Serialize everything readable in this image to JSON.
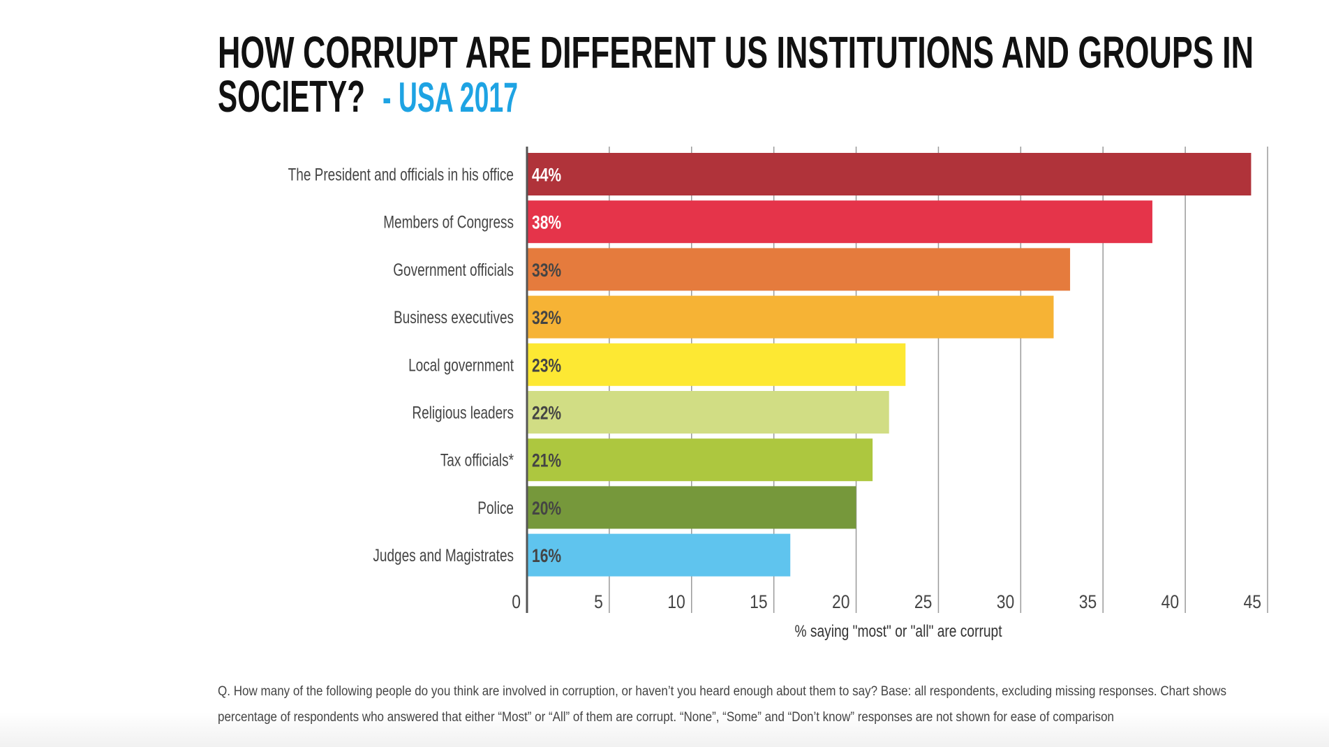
{
  "chart_data": {
    "type": "bar",
    "orientation": "horizontal",
    "title": "HOW CORRUPT ARE DIFFERENT US INSTITUTIONS AND GROUPS IN SOCIETY?",
    "title_line1": "HOW CORRUPT ARE DIFFERENT US INSTITUTIONS AND GROUPS IN",
    "title_line2": "SOCIETY?",
    "subtitle": "- USA 2017",
    "categories": [
      "The President and officials in his office",
      "Members of Congress",
      "Government officials",
      "Business executives",
      "Local government",
      "Religious leaders",
      "Tax officials*",
      "Police",
      "Judges and Magistrates"
    ],
    "values": [
      44,
      38,
      33,
      32,
      23,
      22,
      21,
      20,
      16
    ],
    "data_labels": [
      "44%",
      "38%",
      "33%",
      "32%",
      "23%",
      "22%",
      "21%",
      "20%",
      "16%"
    ],
    "bar_colors": [
      "#b0333a",
      "#e5344a",
      "#e57b3d",
      "#f6b335",
      "#fde833",
      "#d1dd84",
      "#adc73f",
      "#76983b",
      "#5fc4ee"
    ],
    "label_colors": [
      "#ffffff",
      "#ffffff",
      "#444444",
      "#444444",
      "#444444",
      "#444444",
      "#444444",
      "#444444",
      "#444444"
    ],
    "xlabel": "% saying \"most\" or \"all\" are corrupt",
    "ylabel": "",
    "xlim": [
      0,
      45
    ],
    "x_ticks": [
      "0",
      "5",
      "10",
      "15",
      "20",
      "25",
      "30",
      "35",
      "40",
      "45"
    ],
    "grid": "vertical",
    "subtitle_color": "#1ea3e3",
    "footnote": [
      "Q. How many of the following people do you think are involved in corruption, or haven’t you heard enough about them to say? Base: all respondents, excluding missing responses. Chart shows",
      "percentage of respondents who answered that either “Most” or “All” of them are corrupt. “None”, “Some” and “Don’t know” responses are not shown for ease of comparison"
    ]
  }
}
